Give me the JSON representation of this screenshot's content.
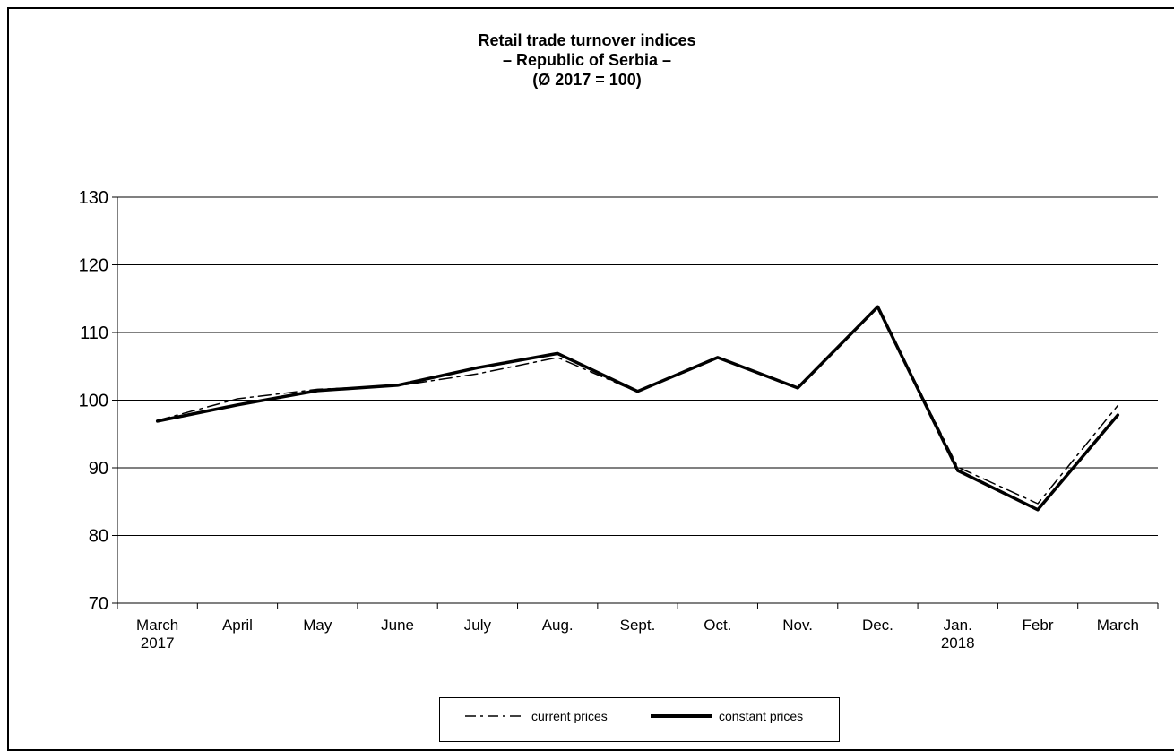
{
  "chart_data": {
    "type": "line",
    "title": [
      "Retail trade turnover indices",
      "– Republic of Serbia –",
      "(Ø 2017 = 100)"
    ],
    "categories": [
      [
        "March",
        "2017"
      ],
      [
        "April"
      ],
      [
        "May"
      ],
      [
        "June"
      ],
      [
        "July"
      ],
      [
        "Aug."
      ],
      [
        "Sept."
      ],
      [
        "Oct."
      ],
      [
        "Nov."
      ],
      [
        "Dec."
      ],
      [
        "Jan.",
        "2018"
      ],
      [
        "Febr"
      ],
      [
        "March"
      ]
    ],
    "ylim": [
      70,
      130
    ],
    "yticks": [
      70,
      80,
      90,
      100,
      110,
      120,
      130
    ],
    "grid": true,
    "legend_position": "bottom",
    "series": [
      {
        "name": "current prices",
        "style": "dash-dot",
        "color": "#000000",
        "values": [
          97.0,
          100.2,
          101.6,
          102.1,
          103.9,
          106.3,
          101.2,
          106.3,
          101.8,
          113.8,
          90.1,
          84.7,
          99.2
        ]
      },
      {
        "name": "constant prices",
        "style": "solid-thick",
        "color": "#000000",
        "values": [
          96.9,
          99.3,
          101.4,
          102.2,
          104.8,
          106.9,
          101.3,
          106.3,
          101.8,
          113.8,
          89.6,
          83.8,
          97.8
        ]
      }
    ]
  }
}
